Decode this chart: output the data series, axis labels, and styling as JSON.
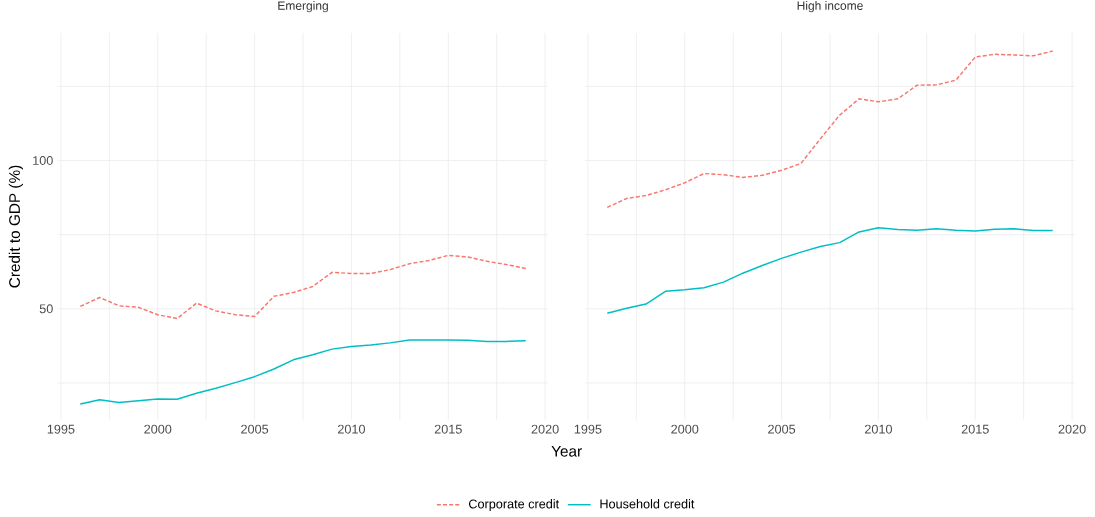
{
  "chart_data": [
    {
      "type": "line",
      "title": "Emerging",
      "xlabel": "Year",
      "ylabel": "Credit to GDP (%)",
      "legend": "bottom",
      "grid": true,
      "marker": "none",
      "x": [
        1996,
        1997,
        1998,
        1999,
        2000,
        2001,
        2002,
        2003,
        2004,
        2005,
        2006,
        2007,
        2008,
        2009,
        2010,
        2011,
        2012,
        2013,
        2014,
        2015,
        2016,
        2017,
        2018,
        2019
      ],
      "xlim": [
        1994.85,
        2020.15
      ],
      "ylim": [
        12.5,
        143
      ],
      "xticks": [
        1995,
        {
          "value": 1997.5,
          "label": null
        },
        2000,
        {
          "value": 2002.5,
          "label": null
        },
        2005,
        {
          "value": 2007.5,
          "label": null
        },
        2010,
        {
          "value": 2012.5,
          "label": null
        },
        2015,
        {
          "value": 2017.5,
          "label": null
        },
        2020
      ],
      "yticks": [
        {
          "value": 25,
          "label": null
        },
        50,
        {
          "value": 75,
          "label": null
        },
        100,
        {
          "value": 125,
          "label": null
        }
      ],
      "series": [
        {
          "name": "Corporate credit",
          "color": "#f8766d",
          "line_style": "dashed",
          "values": [
            50.8,
            53.8,
            51.0,
            50.5,
            48.0,
            46.7,
            51.9,
            49.3,
            48.0,
            47.4,
            54.2,
            55.5,
            57.5,
            62.3,
            61.9,
            61.9,
            63.2,
            65.2,
            66.3,
            68.0,
            67.5,
            66.0,
            64.9,
            63.6
          ]
        },
        {
          "name": "Household credit",
          "color": "#00bfc4",
          "line_style": "solid",
          "values": [
            17.9,
            19.3,
            18.4,
            19.0,
            19.6,
            19.5,
            21.5,
            23.2,
            25.1,
            27.1,
            29.7,
            32.8,
            34.5,
            36.4,
            37.3,
            37.8,
            38.5,
            39.5,
            39.5,
            39.5,
            39.4,
            39.0,
            39.0,
            39.2
          ]
        }
      ]
    },
    {
      "type": "line",
      "title": "High income",
      "grid": true,
      "marker": "none",
      "tick_labels": "x",
      "x": [
        1996,
        1997,
        1998,
        1999,
        2000,
        2001,
        2002,
        2003,
        2004,
        2005,
        2006,
        2007,
        2008,
        2009,
        2010,
        2011,
        2012,
        2013,
        2014,
        2015,
        2016,
        2017,
        2018,
        2019
      ],
      "xlim": [
        1994.85,
        2020.15
      ],
      "ylim": [
        12.5,
        143
      ],
      "xticks": [
        1995,
        {
          "value": 1997.5,
          "label": null
        },
        2000,
        {
          "value": 2002.5,
          "label": null
        },
        2005,
        {
          "value": 2007.5,
          "label": null
        },
        2010,
        {
          "value": 2012.5,
          "label": null
        },
        2015,
        {
          "value": 2017.5,
          "label": null
        },
        2020
      ],
      "yticks": [
        {
          "value": 25,
          "label": null
        },
        50,
        {
          "value": 75,
          "label": null
        },
        100,
        {
          "value": 125,
          "label": null
        }
      ],
      "series": [
        {
          "color": "#f8766d",
          "line_style": "dashed",
          "values": [
            84.2,
            87.2,
            88.2,
            90.1,
            92.5,
            95.6,
            95.2,
            94.3,
            95.0,
            96.7,
            99.0,
            107.3,
            115.3,
            120.8,
            119.8,
            120.8,
            125.4,
            125.5,
            127.1,
            134.9,
            135.8,
            135.6,
            135.3,
            136.9
          ]
        },
        {
          "color": "#00bfc4",
          "line_style": "solid",
          "values": [
            48.5,
            50.2,
            51.6,
            55.9,
            56.4,
            57.1,
            59.0,
            62.0,
            64.6,
            67.0,
            69.1,
            71.0,
            72.3,
            75.9,
            77.3,
            76.7,
            76.5,
            77.0,
            76.5,
            76.2,
            76.8,
            77.0,
            76.4,
            76.4
          ]
        }
      ]
    }
  ]
}
